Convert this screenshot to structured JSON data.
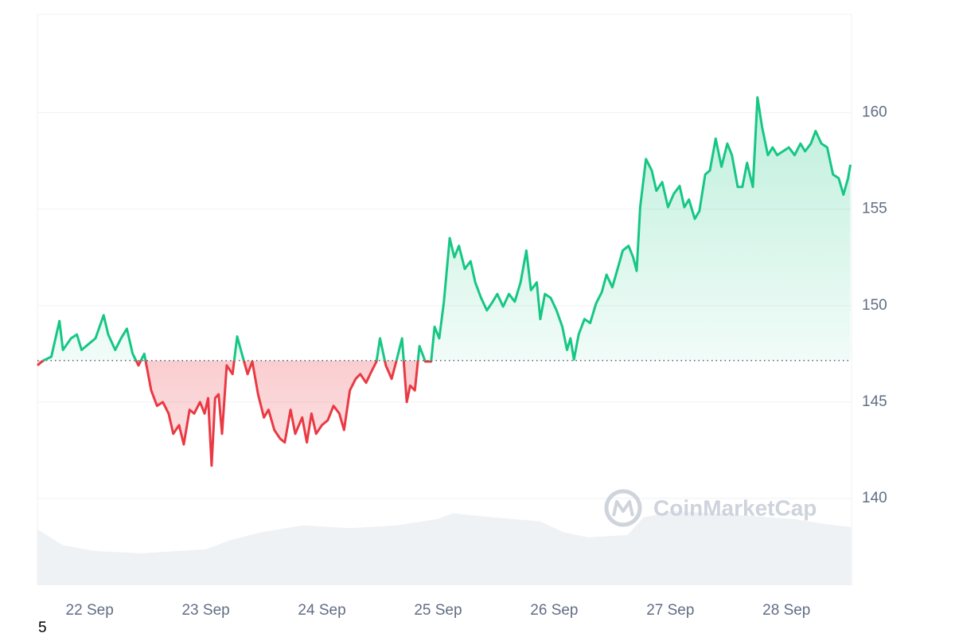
{
  "chart_data": {
    "type": "line",
    "watermark": "CoinMarketCap",
    "corner_label": "5",
    "up_color": "#16c784",
    "down_color": "#ea3943",
    "baseline": 147.15,
    "grid": true,
    "xlim": [
      21.55,
      28.56
    ],
    "xticks": [
      {
        "value": 22,
        "label": "22 Sep"
      },
      {
        "value": 23,
        "label": "23 Sep"
      },
      {
        "value": 24,
        "label": "24 Sep"
      },
      {
        "value": 25,
        "label": "25 Sep"
      },
      {
        "value": 26,
        "label": "26 Sep"
      },
      {
        "value": 27,
        "label": "27 Sep"
      },
      {
        "value": 28,
        "label": "28 Sep"
      }
    ],
    "ylim": [
      135.5,
      165.1
    ],
    "yticks": [
      140,
      145,
      150,
      155,
      160
    ],
    "y2lim": [
      0,
      1000
    ],
    "series": [
      {
        "name": "Price",
        "x": [
          21.55,
          21.6,
          21.67,
          21.74,
          21.77,
          21.84,
          21.89,
          21.93,
          21.99,
          22.05,
          22.12,
          22.16,
          22.22,
          22.27,
          22.32,
          22.37,
          22.42,
          22.47,
          22.53,
          22.58,
          22.63,
          22.68,
          22.72,
          22.77,
          22.81,
          22.86,
          22.9,
          22.95,
          22.99,
          23.02,
          23.05,
          23.08,
          23.11,
          23.14,
          23.18,
          23.23,
          23.27,
          23.32,
          23.36,
          23.4,
          23.45,
          23.5,
          23.54,
          23.59,
          23.64,
          23.68,
          23.73,
          23.77,
          23.83,
          23.87,
          23.91,
          23.95,
          24.0,
          24.05,
          24.1,
          24.15,
          24.19,
          24.24,
          24.29,
          24.33,
          24.38,
          24.42,
          24.47,
          24.5,
          24.55,
          24.6,
          24.64,
          24.69,
          24.73,
          24.76,
          24.8,
          24.84,
          24.89,
          24.94,
          24.97,
          25.01,
          25.05,
          25.1,
          25.14,
          25.18,
          25.23,
          25.28,
          25.32,
          25.37,
          25.42,
          25.47,
          25.51,
          25.56,
          25.61,
          25.66,
          25.71,
          25.76,
          25.8,
          25.85,
          25.88,
          25.92,
          25.97,
          26.02,
          26.07,
          26.11,
          26.14,
          26.17,
          26.21,
          26.26,
          26.31,
          26.36,
          26.41,
          26.45,
          26.5,
          26.55,
          26.59,
          26.64,
          26.68,
          26.71,
          26.74,
          26.79,
          26.84,
          26.88,
          26.93,
          26.98,
          27.03,
          27.08,
          27.12,
          27.16,
          27.21,
          27.25,
          27.3,
          27.34,
          27.39,
          27.44,
          27.49,
          27.53,
          27.58,
          27.62,
          27.66,
          27.71,
          27.75,
          27.79,
          27.84,
          27.88,
          27.92,
          27.97,
          28.02,
          28.07,
          28.12,
          28.16,
          28.21,
          28.25,
          28.3,
          28.35,
          28.4,
          28.45,
          28.49,
          28.53,
          28.55
        ],
        "values": [
          146.9,
          147.15,
          147.35,
          149.2,
          147.7,
          148.3,
          148.5,
          147.7,
          148.0,
          148.3,
          149.5,
          148.5,
          147.7,
          148.3,
          148.8,
          147.5,
          146.9,
          147.5,
          145.6,
          144.8,
          145.0,
          144.4,
          143.35,
          143.8,
          142.8,
          144.6,
          144.4,
          145.0,
          144.4,
          145.2,
          141.7,
          145.2,
          145.4,
          143.35,
          146.9,
          146.45,
          148.4,
          147.3,
          146.45,
          147.1,
          145.4,
          144.2,
          144.6,
          143.55,
          143.1,
          142.9,
          144.6,
          143.35,
          144.2,
          142.9,
          144.4,
          143.35,
          143.8,
          144.05,
          144.8,
          144.4,
          143.55,
          145.6,
          146.2,
          146.45,
          146.0,
          146.5,
          147.1,
          148.3,
          146.9,
          146.2,
          147.1,
          148.3,
          145.0,
          145.85,
          145.6,
          147.9,
          147.1,
          147.1,
          148.9,
          148.3,
          150.2,
          153.5,
          152.5,
          153.1,
          151.9,
          152.3,
          151.2,
          150.4,
          149.75,
          150.2,
          150.6,
          149.95,
          150.6,
          150.2,
          151.2,
          152.85,
          150.8,
          151.2,
          149.3,
          150.6,
          150.4,
          149.75,
          148.9,
          147.7,
          148.3,
          147.2,
          148.5,
          149.3,
          149.1,
          150.1,
          150.7,
          151.6,
          150.95,
          152.0,
          152.85,
          153.1,
          152.5,
          151.8,
          155.1,
          157.6,
          157.0,
          155.95,
          156.4,
          155.1,
          155.8,
          156.2,
          155.1,
          155.5,
          154.5,
          154.9,
          156.8,
          157.0,
          158.65,
          157.2,
          158.4,
          157.8,
          156.15,
          156.15,
          157.4,
          156.15,
          160.8,
          159.25,
          157.8,
          158.2,
          157.8,
          158.0,
          158.2,
          157.8,
          158.4,
          158.0,
          158.4,
          159.05,
          158.4,
          158.2,
          156.8,
          156.6,
          155.75,
          156.6,
          157.3
        ]
      },
      {
        "name": "Volume",
        "axis": "y2",
        "color": "#eff2f5",
        "x": [
          21.55,
          21.77,
          22.05,
          22.45,
          23.0,
          23.21,
          23.48,
          23.83,
          24.24,
          24.65,
          24.99,
          25.13,
          25.47,
          25.88,
          26.08,
          26.29,
          26.63,
          26.77,
          27.04,
          27.38,
          27.73,
          28.07,
          28.34,
          28.56
        ],
        "values": [
          98,
          70,
          60,
          56,
          63,
          79,
          93,
          105,
          100,
          105,
          116,
          126,
          119,
          112,
          93,
          84,
          88,
          119,
          130,
          126,
          121,
          116,
          107,
          102
        ]
      }
    ]
  }
}
